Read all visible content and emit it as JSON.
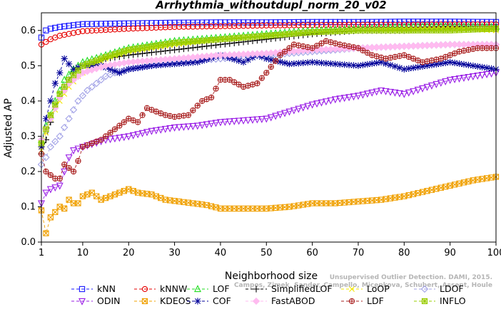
{
  "chart_data": {
    "type": "line",
    "title": "Arrhythmia_withoutdupl_norm_20_v02",
    "xlabel": "Neighborhood size",
    "ylabel": "Adjusted AP",
    "xlim": [
      1,
      100
    ],
    "ylim": [
      0,
      0.65
    ],
    "x_ticks": [
      1,
      10,
      20,
      30,
      40,
      50,
      60,
      70,
      80,
      90,
      100
    ],
    "y_ticks": [
      0.0,
      0.1,
      0.2,
      0.3,
      0.4,
      0.5,
      0.6
    ],
    "grid": false,
    "legend_position": "bottom",
    "watermark": [
      "Unsupervised Outlier Detection. DAMI, 2015.",
      "Campos, Zimek, Sander, Campello, Micenkova, Schubert, Assent, Houle"
    ],
    "series": [
      {
        "name": "kNN",
        "color": "#1a1aff",
        "marker": "square",
        "dash": "4,3",
        "points": [
          [
            1,
            0.58
          ],
          [
            2,
            0.6
          ],
          [
            3,
            0.605
          ],
          [
            5,
            0.61
          ],
          [
            8,
            0.615
          ],
          [
            10,
            0.618
          ],
          [
            20,
            0.62
          ],
          [
            30,
            0.622
          ],
          [
            40,
            0.623
          ],
          [
            50,
            0.623
          ],
          [
            60,
            0.624
          ],
          [
            70,
            0.624
          ],
          [
            80,
            0.625
          ],
          [
            90,
            0.625
          ],
          [
            100,
            0.624
          ]
        ]
      },
      {
        "name": "kNNW",
        "color": "#e60000",
        "marker": "circle",
        "dash": "4,3",
        "points": [
          [
            1,
            0.56
          ],
          [
            3,
            0.575
          ],
          [
            5,
            0.585
          ],
          [
            10,
            0.598
          ],
          [
            20,
            0.605
          ],
          [
            30,
            0.61
          ],
          [
            40,
            0.612
          ],
          [
            50,
            0.614
          ],
          [
            60,
            0.615
          ],
          [
            70,
            0.616
          ],
          [
            80,
            0.616
          ],
          [
            90,
            0.617
          ],
          [
            100,
            0.617
          ]
        ]
      },
      {
        "name": "LOF",
        "color": "#22dd22",
        "marker": "triangle",
        "dash": "4,3",
        "points": [
          [
            1,
            0.29
          ],
          [
            2,
            0.33
          ],
          [
            3,
            0.36
          ],
          [
            4,
            0.4
          ],
          [
            5,
            0.43
          ],
          [
            6,
            0.46
          ],
          [
            8,
            0.49
          ],
          [
            10,
            0.51
          ],
          [
            15,
            0.53
          ],
          [
            20,
            0.55
          ],
          [
            30,
            0.57
          ],
          [
            40,
            0.58
          ],
          [
            50,
            0.59
          ],
          [
            60,
            0.6
          ],
          [
            70,
            0.605
          ],
          [
            80,
            0.61
          ],
          [
            90,
            0.612
          ],
          [
            100,
            0.61
          ]
        ]
      },
      {
        "name": "SimplifiedLOF",
        "color": "#000000",
        "marker": "plus",
        "dash": "4,3",
        "points": [
          [
            1,
            0.25
          ],
          [
            2,
            0.29
          ],
          [
            3,
            0.34
          ],
          [
            4,
            0.38
          ],
          [
            5,
            0.41
          ],
          [
            6,
            0.44
          ],
          [
            8,
            0.48
          ],
          [
            10,
            0.5
          ],
          [
            13,
            0.51
          ],
          [
            15,
            0.52
          ],
          [
            20,
            0.53
          ],
          [
            30,
            0.545
          ],
          [
            40,
            0.56
          ],
          [
            50,
            0.575
          ],
          [
            60,
            0.59
          ],
          [
            70,
            0.6
          ],
          [
            80,
            0.6
          ],
          [
            90,
            0.605
          ],
          [
            100,
            0.605
          ]
        ]
      },
      {
        "name": "LoOP",
        "color": "#f2e600",
        "marker": "x",
        "dash": "4,3",
        "points": [
          [
            1,
            0.26
          ],
          [
            2,
            0.31
          ],
          [
            3,
            0.35
          ],
          [
            5,
            0.4
          ],
          [
            7,
            0.44
          ],
          [
            9,
            0.47
          ],
          [
            12,
            0.5
          ],
          [
            15,
            0.52
          ],
          [
            20,
            0.54
          ],
          [
            30,
            0.56
          ],
          [
            40,
            0.575
          ],
          [
            50,
            0.585
          ],
          [
            60,
            0.595
          ],
          [
            70,
            0.6
          ],
          [
            80,
            0.603
          ],
          [
            90,
            0.605
          ],
          [
            100,
            0.6
          ]
        ]
      },
      {
        "name": "LDOF",
        "color": "#a0a0e6",
        "marker": "diamond",
        "dash": "4,3",
        "points": [
          [
            1,
            0.22
          ],
          [
            2,
            0.24
          ],
          [
            3,
            0.27
          ],
          [
            5,
            0.3
          ],
          [
            7,
            0.35
          ],
          [
            9,
            0.4
          ],
          [
            11,
            0.43
          ],
          [
            13,
            0.45
          ],
          [
            15,
            0.47
          ],
          [
            17,
            0.48
          ],
          [
            20,
            0.49
          ],
          [
            25,
            0.5
          ],
          [
            30,
            0.51
          ],
          [
            40,
            0.52
          ],
          [
            50,
            0.53
          ],
          [
            60,
            0.54
          ],
          [
            70,
            0.55
          ],
          [
            80,
            0.555
          ],
          [
            90,
            0.56
          ],
          [
            100,
            0.56
          ]
        ]
      },
      {
        "name": "ODIN",
        "color": "#9a1ee6",
        "marker": "triangle-down",
        "dash": "4,3",
        "points": [
          [
            1,
            0.11
          ],
          [
            2,
            0.14
          ],
          [
            3,
            0.15
          ],
          [
            5,
            0.16
          ],
          [
            6,
            0.2
          ],
          [
            7,
            0.24
          ],
          [
            8,
            0.26
          ],
          [
            10,
            0.27
          ],
          [
            15,
            0.29
          ],
          [
            20,
            0.3
          ],
          [
            25,
            0.315
          ],
          [
            30,
            0.325
          ],
          [
            35,
            0.33
          ],
          [
            40,
            0.34
          ],
          [
            45,
            0.345
          ],
          [
            50,
            0.35
          ],
          [
            55,
            0.37
          ],
          [
            60,
            0.39
          ],
          [
            65,
            0.405
          ],
          [
            70,
            0.415
          ],
          [
            75,
            0.43
          ],
          [
            80,
            0.42
          ],
          [
            85,
            0.44
          ],
          [
            90,
            0.46
          ],
          [
            95,
            0.47
          ],
          [
            100,
            0.48
          ]
        ]
      },
      {
        "name": "KDEOS",
        "color": "#f0a000",
        "marker": "square-x",
        "dash": "4,3",
        "points": [
          [
            1,
            0.09
          ],
          [
            2,
            0.025
          ],
          [
            3,
            0.07
          ],
          [
            4,
            0.085
          ],
          [
            5,
            0.1
          ],
          [
            6,
            0.095
          ],
          [
            7,
            0.12
          ],
          [
            8,
            0.11
          ],
          [
            9,
            0.11
          ],
          [
            10,
            0.13
          ],
          [
            12,
            0.14
          ],
          [
            14,
            0.12
          ],
          [
            16,
            0.13
          ],
          [
            18,
            0.14
          ],
          [
            20,
            0.15
          ],
          [
            22,
            0.14
          ],
          [
            25,
            0.135
          ],
          [
            28,
            0.12
          ],
          [
            31,
            0.115
          ],
          [
            34,
            0.11
          ],
          [
            37,
            0.105
          ],
          [
            40,
            0.095
          ],
          [
            45,
            0.095
          ],
          [
            50,
            0.095
          ],
          [
            55,
            0.1
          ],
          [
            60,
            0.11
          ],
          [
            65,
            0.11
          ],
          [
            70,
            0.115
          ],
          [
            75,
            0.12
          ],
          [
            80,
            0.13
          ],
          [
            85,
            0.145
          ],
          [
            90,
            0.16
          ],
          [
            95,
            0.175
          ],
          [
            100,
            0.185
          ]
        ]
      },
      {
        "name": "COF",
        "color": "#000099",
        "marker": "star",
        "dash": "4,3",
        "points": [
          [
            1,
            0.27
          ],
          [
            2,
            0.35
          ],
          [
            3,
            0.4
          ],
          [
            4,
            0.45
          ],
          [
            5,
            0.48
          ],
          [
            6,
            0.52
          ],
          [
            8,
            0.49
          ],
          [
            10,
            0.5
          ],
          [
            12,
            0.5
          ],
          [
            14,
            0.5
          ],
          [
            16,
            0.49
          ],
          [
            18,
            0.48
          ],
          [
            20,
            0.49
          ],
          [
            25,
            0.5
          ],
          [
            30,
            0.505
          ],
          [
            35,
            0.51
          ],
          [
            40,
            0.53
          ],
          [
            45,
            0.51
          ],
          [
            48,
            0.53
          ],
          [
            50,
            0.52
          ],
          [
            55,
            0.505
          ],
          [
            60,
            0.51
          ],
          [
            65,
            0.505
          ],
          [
            70,
            0.5
          ],
          [
            75,
            0.51
          ],
          [
            80,
            0.49
          ],
          [
            85,
            0.5
          ],
          [
            90,
            0.51
          ],
          [
            95,
            0.5
          ],
          [
            100,
            0.49
          ]
        ]
      },
      {
        "name": "FastABOD",
        "color": "#ffbbf0",
        "marker": "diamond-filled",
        "dash": "4,3",
        "points": [
          [
            1,
            0.29
          ],
          [
            3,
            0.35
          ],
          [
            5,
            0.41
          ],
          [
            7,
            0.45
          ],
          [
            10,
            0.48
          ],
          [
            15,
            0.5
          ],
          [
            20,
            0.51
          ],
          [
            30,
            0.52
          ],
          [
            40,
            0.53
          ],
          [
            50,
            0.535
          ],
          [
            60,
            0.545
          ],
          [
            70,
            0.55
          ],
          [
            80,
            0.555
          ],
          [
            90,
            0.56
          ],
          [
            100,
            0.56
          ]
        ]
      },
      {
        "name": "LDF",
        "color": "#aa2222",
        "marker": "circle-plus",
        "dash": "4,3",
        "points": [
          [
            1,
            0.25
          ],
          [
            2,
            0.2
          ],
          [
            3,
            0.19
          ],
          [
            4,
            0.18
          ],
          [
            5,
            0.18
          ],
          [
            6,
            0.22
          ],
          [
            7,
            0.21
          ],
          [
            8,
            0.2
          ],
          [
            9,
            0.23
          ],
          [
            10,
            0.27
          ],
          [
            12,
            0.28
          ],
          [
            14,
            0.29
          ],
          [
            16,
            0.31
          ],
          [
            18,
            0.33
          ],
          [
            20,
            0.35
          ],
          [
            22,
            0.34
          ],
          [
            24,
            0.38
          ],
          [
            26,
            0.37
          ],
          [
            28,
            0.36
          ],
          [
            30,
            0.355
          ],
          [
            33,
            0.36
          ],
          [
            36,
            0.4
          ],
          [
            38,
            0.41
          ],
          [
            40,
            0.46
          ],
          [
            42,
            0.46
          ],
          [
            45,
            0.44
          ],
          [
            48,
            0.45
          ],
          [
            50,
            0.48
          ],
          [
            53,
            0.53
          ],
          [
            56,
            0.56
          ],
          [
            60,
            0.55
          ],
          [
            63,
            0.57
          ],
          [
            66,
            0.56
          ],
          [
            70,
            0.55
          ],
          [
            73,
            0.53
          ],
          [
            76,
            0.52
          ],
          [
            80,
            0.53
          ],
          [
            84,
            0.51
          ],
          [
            88,
            0.52
          ],
          [
            92,
            0.54
          ],
          [
            96,
            0.55
          ],
          [
            100,
            0.55
          ]
        ]
      },
      {
        "name": "INFLO",
        "color": "#99cc00",
        "marker": "square-star",
        "dash": "4,3",
        "points": [
          [
            1,
            0.28
          ],
          [
            2,
            0.32
          ],
          [
            3,
            0.36
          ],
          [
            5,
            0.42
          ],
          [
            7,
            0.46
          ],
          [
            10,
            0.5
          ],
          [
            15,
            0.525
          ],
          [
            20,
            0.545
          ],
          [
            30,
            0.565
          ],
          [
            40,
            0.575
          ],
          [
            50,
            0.585
          ],
          [
            60,
            0.595
          ],
          [
            70,
            0.6
          ],
          [
            80,
            0.6
          ],
          [
            90,
            0.6
          ],
          [
            100,
            0.605
          ]
        ]
      }
    ]
  }
}
